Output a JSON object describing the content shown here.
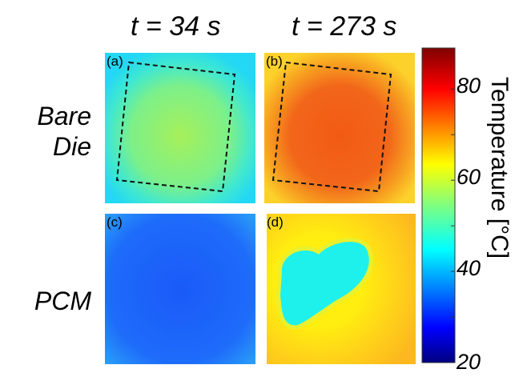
{
  "columns": [
    "t = 34 s",
    "t = 273 s"
  ],
  "rows": [
    [
      "Bare",
      "Die"
    ],
    [
      "PCM"
    ]
  ],
  "panels": [
    {
      "label": "(a)",
      "row": "Bare Die",
      "time": "t = 34 s",
      "die_outline": true
    },
    {
      "label": "(b)",
      "row": "Bare Die",
      "time": "t = 273 s",
      "die_outline": true
    },
    {
      "label": "(c)",
      "row": "PCM",
      "time": "t = 34 s",
      "die_outline": false
    },
    {
      "label": "(d)",
      "row": "PCM",
      "time": "t = 273 s",
      "die_outline": false
    }
  ],
  "chart_data": {
    "type": "heatmap",
    "colormap": "jet",
    "colorbar": {
      "label": "Temperature [°C]",
      "range": [
        20,
        89
      ],
      "ticks": [
        20,
        40,
        60,
        80
      ],
      "tick_labels": [
        "20",
        "40",
        "60",
        "80"
      ],
      "minor_ticks": [
        30,
        50,
        70
      ]
    },
    "approx_panel_temperatures_C": {
      "(a)": {
        "die": 54,
        "surround": 46
      },
      "(b)": {
        "die": 76,
        "surround": 67
      },
      "(c)": {
        "uniform": 37
      },
      "(d)": {
        "center": 46,
        "surround": 66
      }
    }
  }
}
